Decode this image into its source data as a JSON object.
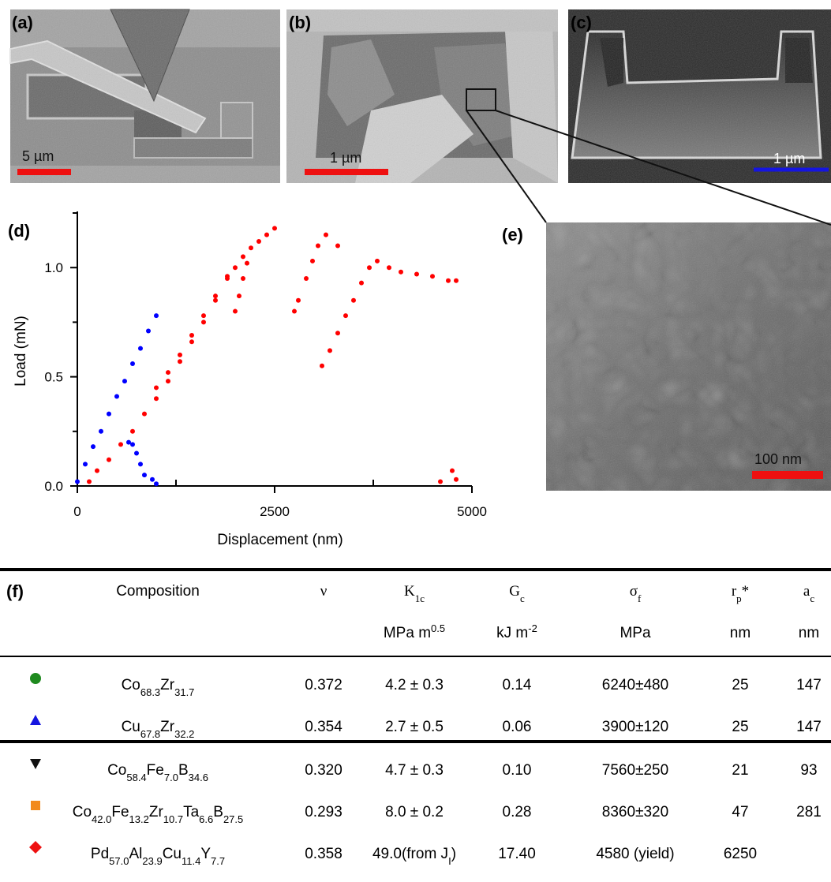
{
  "panels": [
    {
      "label": "(a)",
      "scale_bar": "5 µm"
    },
    {
      "label": "(b)",
      "scale_bar": "1 µm"
    },
    {
      "label": "(c)",
      "scale_bar": "1 µm"
    },
    {
      "label": "(e)",
      "scale_bar": "100 nm"
    }
  ],
  "chart_data": {
    "type": "scatter",
    "label": "(d)",
    "x_label": "Displacement (nm)",
    "y_label": "Load (mN)",
    "xlim": [
      0,
      5000
    ],
    "ylim": [
      0,
      1.25
    ],
    "xticks": [
      0,
      2500,
      5000
    ],
    "xminor": [
      1250,
      3750
    ],
    "yticks": [
      {
        "value": 0,
        "label": "0.0"
      },
      {
        "value": 0.5,
        "label": "0.5"
      },
      {
        "value": 1.0,
        "label": "1.0"
      }
    ],
    "yminor": [
      0.25,
      0.75,
      1.25
    ],
    "series": [
      {
        "color": "#ff0000",
        "x": [
          150,
          250,
          400,
          550,
          700,
          850,
          1000,
          1150,
          1300,
          1450,
          1600,
          1750,
          1900,
          2000,
          2100,
          2200,
          2300,
          2400,
          2500,
          1000,
          1150,
          1300,
          1450,
          1600,
          1750,
          1900,
          2000,
          2050,
          2100,
          2150,
          2750,
          2800,
          2900,
          2980,
          3050,
          3150,
          3300,
          3100,
          3200,
          3300,
          3400,
          3500,
          3600,
          3700,
          3800,
          3950,
          4100,
          4300,
          4500,
          4700,
          4800,
          4600,
          4750,
          4800
        ],
        "y": [
          0.02,
          0.07,
          0.12,
          0.19,
          0.25,
          0.33,
          0.4,
          0.48,
          0.57,
          0.66,
          0.75,
          0.85,
          0.95,
          1.0,
          1.05,
          1.09,
          1.12,
          1.15,
          1.18,
          0.45,
          0.52,
          0.6,
          0.69,
          0.78,
          0.87,
          0.96,
          0.8,
          0.87,
          0.95,
          1.02,
          0.8,
          0.85,
          0.95,
          1.03,
          1.1,
          1.15,
          1.1,
          0.55,
          0.62,
          0.7,
          0.78,
          0.85,
          0.93,
          1.0,
          1.03,
          1.0,
          0.98,
          0.97,
          0.96,
          0.94,
          0.94,
          0.02,
          0.07,
          0.03
        ]
      },
      {
        "color": "#0000ff",
        "x": [
          0,
          100,
          200,
          300,
          400,
          500,
          600,
          700,
          800,
          900,
          1000,
          650,
          700,
          750,
          800,
          850,
          950,
          1000
        ],
        "y": [
          0.02,
          0.1,
          0.18,
          0.25,
          0.33,
          0.41,
          0.48,
          0.56,
          0.63,
          0.71,
          0.78,
          0.2,
          0.19,
          0.15,
          0.1,
          0.05,
          0.03,
          0.01
        ]
      }
    ]
  },
  "table": {
    "label": "(f)",
    "header": [
      [
        {
          "t": "Composition"
        }
      ],
      [
        {
          "t": "ν"
        }
      ],
      [
        {
          "t": "K"
        },
        {
          "t": "1c",
          "s": "sub"
        }
      ],
      [
        {
          "t": "G"
        },
        {
          "t": "c",
          "s": "sub"
        }
      ],
      [
        {
          "t": "σ"
        },
        {
          "t": "f",
          "s": "sub"
        }
      ],
      [
        {
          "t": "r"
        },
        {
          "t": "p",
          "s": "sub"
        },
        {
          "t": "*"
        }
      ],
      [
        {
          "t": "a"
        },
        {
          "t": "c",
          "s": "sub"
        }
      ]
    ],
    "units": [
      null,
      null,
      [
        {
          "t": "MPa m"
        },
        {
          "t": "0.5",
          "s": "super"
        }
      ],
      [
        {
          "t": "kJ m"
        },
        {
          "t": "-2",
          "s": "super"
        }
      ],
      [
        {
          "t": "MPa"
        }
      ],
      [
        {
          "t": "nm"
        }
      ],
      [
        {
          "t": "nm"
        }
      ]
    ],
    "rows": [
      {
        "marker": "circle",
        "color": "#1f8a1f",
        "cells": [
          [
            {
              "t": "Co"
            },
            {
              "t": "68.3",
              "s": "sub"
            },
            {
              "t": "Zr"
            },
            {
              "t": "31.7",
              "s": "sub"
            }
          ],
          [
            {
              "t": "0.372"
            }
          ],
          [
            {
              "t": "4.2 ± 0.3"
            }
          ],
          [
            {
              "t": "0.14"
            }
          ],
          [
            {
              "t": "6240±480"
            }
          ],
          [
            {
              "t": "25"
            }
          ],
          [
            {
              "t": "147"
            }
          ]
        ]
      },
      {
        "marker": "triangle-up",
        "color": "#1515e0",
        "cells": [
          [
            {
              "t": "Cu"
            },
            {
              "t": "67.8",
              "s": "sub"
            },
            {
              "t": "Zr"
            },
            {
              "t": "32.2",
              "s": "sub"
            }
          ],
          [
            {
              "t": "0.354"
            }
          ],
          [
            {
              "t": "2.7 ± 0.5"
            }
          ],
          [
            {
              "t": "0.06"
            }
          ],
          [
            {
              "t": "3900±120"
            }
          ],
          [
            {
              "t": "25"
            }
          ],
          [
            {
              "t": "147"
            }
          ]
        ]
      },
      {
        "marker": "triangle-down",
        "color": "#111111",
        "cells": [
          [
            {
              "t": "Co"
            },
            {
              "t": "58.4",
              "s": "sub"
            },
            {
              "t": "Fe"
            },
            {
              "t": "7.0",
              "s": "sub"
            },
            {
              "t": "B"
            },
            {
              "t": "34.6",
              "s": "sub"
            }
          ],
          [
            {
              "t": "0.320"
            }
          ],
          [
            {
              "t": "4.7 ± 0.3"
            }
          ],
          [
            {
              "t": "0.10"
            }
          ],
          [
            {
              "t": "7560±250"
            }
          ],
          [
            {
              "t": "21"
            }
          ],
          [
            {
              "t": "93"
            }
          ]
        ]
      },
      {
        "marker": "square",
        "color": "#f28a1c",
        "cells": [
          [
            {
              "t": "Co"
            },
            {
              "t": "42.0",
              "s": "sub"
            },
            {
              "t": "Fe"
            },
            {
              "t": "13.2",
              "s": "sub"
            },
            {
              "t": "Zr"
            },
            {
              "t": "10.7",
              "s": "sub"
            },
            {
              "t": "Ta"
            },
            {
              "t": "6.6",
              "s": "sub"
            },
            {
              "t": "B"
            },
            {
              "t": "27.5",
              "s": "sub"
            }
          ],
          [
            {
              "t": "0.293"
            }
          ],
          [
            {
              "t": "8.0 ± 0.2"
            }
          ],
          [
            {
              "t": "0.28"
            }
          ],
          [
            {
              "t": "8360±320"
            }
          ],
          [
            {
              "t": "47"
            }
          ],
          [
            {
              "t": "281"
            }
          ]
        ]
      },
      {
        "marker": "diamond",
        "color": "#ee1111",
        "cells": [
          [
            {
              "t": "Pd"
            },
            {
              "t": "57.0",
              "s": "sub"
            },
            {
              "t": "Al"
            },
            {
              "t": "23.9",
              "s": "sub"
            },
            {
              "t": "Cu"
            },
            {
              "t": "11.4",
              "s": "sub"
            },
            {
              "t": "Y"
            },
            {
              "t": "7.7",
              "s": "sub"
            }
          ],
          [
            {
              "t": "0.358"
            }
          ],
          [
            {
              "t": "49.0(from J"
            },
            {
              "t": "I",
              "s": "sub"
            },
            {
              "t": ")"
            }
          ],
          [
            {
              "t": "17.40"
            }
          ],
          [
            {
              "t": "4580 (yield)"
            }
          ],
          [
            {
              "t": "6250"
            }
          ],
          null
        ]
      }
    ]
  }
}
